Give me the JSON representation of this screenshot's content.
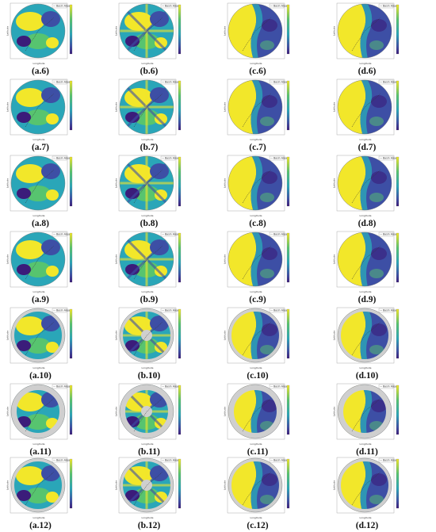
{
  "figure": {
    "rows": [
      [
        "(a.6)",
        "(b.6)",
        "(c.6)",
        "(d.6)"
      ],
      [
        "(a.7)",
        "(b.7)",
        "(c.7)",
        "(d.7)"
      ],
      [
        "(a.8)",
        "(b.8)",
        "(c.8)",
        "(d.8)"
      ],
      [
        "(a.9)",
        "(b.9)",
        "(c.9)",
        "(d.9)"
      ],
      [
        "(a.10)",
        "(b.10)",
        "(c.10)",
        "(d.10)"
      ],
      [
        "(a.11)",
        "(b.11)",
        "(c.11)",
        "(d.11)"
      ],
      [
        "(a.12)",
        "(b.12)",
        "(c.12)",
        "(d.12)"
      ]
    ],
    "axis_x_label": "Longitude",
    "axis_y_label": "Latitude",
    "legend_label": "Basin Area",
    "colors": {
      "yellow": "#f2e72a",
      "green": "#57c46f",
      "cyan": "#2aa6b8",
      "blue": "#3d4fa5",
      "dark_blue": "#3b1c7a",
      "grey": "#cfcfcf"
    }
  }
}
